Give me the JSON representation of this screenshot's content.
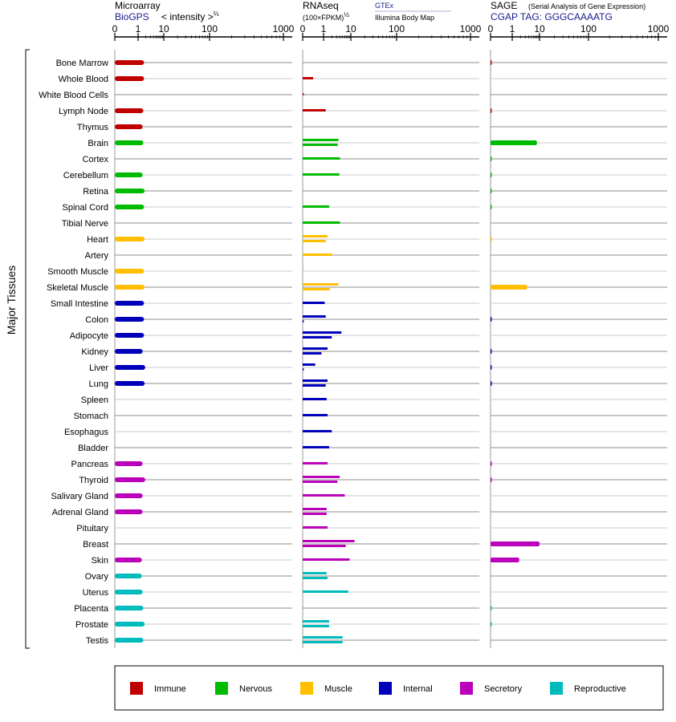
{
  "panels": [
    {
      "id": "microarray",
      "title": "Microarray",
      "source": "BioGPS",
      "scale_text": "< intensity >",
      "scale_sup": "⅔",
      "ticks": [
        "0",
        "1",
        "10",
        "100",
        "1000"
      ]
    },
    {
      "id": "rnaseq",
      "title": "RNAseq",
      "scale_text": "(100×FPKM)",
      "scale_sup": "½",
      "sources": [
        "GTEx",
        "Illumina Body Map"
      ],
      "ticks": [
        "0",
        "1",
        "10",
        "100",
        "1000"
      ]
    },
    {
      "id": "sage",
      "title": "SAGE",
      "subtitle": "(Serial Analysis of Gene Expression)",
      "tag": "CGAP TAG: GGGCAAAATG",
      "ticks": [
        "0",
        "1",
        "10",
        "100",
        "1000"
      ]
    }
  ],
  "side_label": "Major Tissues",
  "categories": {
    "Immune": "#c00000",
    "Nervous": "#00bb00",
    "Muscle": "#ffbf00",
    "Internal": "#0000bb",
    "Secretory": "#bb00bb",
    "Reproductive": "#00bbbb"
  },
  "legend": [
    "Immune",
    "Nervous",
    "Muscle",
    "Internal",
    "Secretory",
    "Reproductive"
  ],
  "chart_data": {
    "type": "bar",
    "orientation": "horizontal",
    "x_scale": "nonlinear (0, 1, 10, 100, 1000)",
    "xlim": [
      0,
      1000
    ],
    "series": [
      "Microarray",
      "RNAseq GTEx",
      "RNAseq Illumina Body Map",
      "SAGE"
    ],
    "tissues": [
      {
        "name": "Bone Marrow",
        "category": "Immune",
        "microarray": 1.7,
        "gtex": null,
        "ibm": null,
        "sage": 0.05
      },
      {
        "name": "Whole Blood",
        "category": "Immune",
        "microarray": 1.7,
        "gtex": 0.5,
        "ibm": null,
        "sage": null
      },
      {
        "name": "White Blood Cells",
        "category": "Immune",
        "microarray": null,
        "gtex": 0.05,
        "ibm": null,
        "sage": null
      },
      {
        "name": "Lymph Node",
        "category": "Immune",
        "microarray": 1.6,
        "gtex": 1.2,
        "ibm": null,
        "sage": 0.05
      },
      {
        "name": "Thymus",
        "category": "Immune",
        "microarray": 1.5,
        "gtex": null,
        "ibm": null,
        "sage": null
      },
      {
        "name": "Brain",
        "category": "Nervous",
        "microarray": 1.6,
        "gtex": 3.5,
        "ibm": 3.3,
        "sage": 8.0
      },
      {
        "name": "Cortex",
        "category": "Nervous",
        "microarray": null,
        "gtex": 4.0,
        "ibm": null,
        "sage": 0.02
      },
      {
        "name": "Cerebellum",
        "category": "Nervous",
        "microarray": 1.5,
        "gtex": 3.8,
        "ibm": null,
        "sage": 0.02
      },
      {
        "name": "Retina",
        "category": "Nervous",
        "microarray": 1.8,
        "gtex": null,
        "ibm": null,
        "sage": 0.02
      },
      {
        "name": "Spinal Cord",
        "category": "Nervous",
        "microarray": 1.7,
        "gtex": 1.6,
        "ibm": null,
        "sage": 0.02
      },
      {
        "name": "Tibial Nerve",
        "category": "Nervous",
        "microarray": null,
        "gtex": 4.0,
        "ibm": null,
        "sage": null
      },
      {
        "name": "Heart",
        "category": "Muscle",
        "microarray": 1.8,
        "gtex": 1.4,
        "ibm": 1.2,
        "sage": 0.02
      },
      {
        "name": "Artery",
        "category": "Muscle",
        "microarray": null,
        "gtex": 2.0,
        "ibm": null,
        "sage": null
      },
      {
        "name": "Smooth Muscle",
        "category": "Muscle",
        "microarray": 1.7,
        "gtex": null,
        "ibm": null,
        "sage": null
      },
      {
        "name": "Skeletal Muscle",
        "category": "Muscle",
        "microarray": 1.8,
        "gtex": 3.5,
        "ibm": 1.7,
        "sage": 3.5
      },
      {
        "name": "Small Intestine",
        "category": "Internal",
        "microarray": 1.7,
        "gtex": 1.1,
        "ibm": null,
        "sage": null
      },
      {
        "name": "Colon",
        "category": "Internal",
        "microarray": 1.7,
        "gtex": 1.2,
        "ibm": 0.05,
        "sage": 0.05
      },
      {
        "name": "Adipocyte",
        "category": "Internal",
        "microarray": 1.7,
        "gtex": 4.5,
        "ibm": 2.0,
        "sage": null
      },
      {
        "name": "Kidney",
        "category": "Internal",
        "microarray": 1.5,
        "gtex": 1.4,
        "ibm": 0.9,
        "sage": 0.05
      },
      {
        "name": "Liver",
        "category": "Internal",
        "microarray": 1.9,
        "gtex": 0.6,
        "ibm": 0.05,
        "sage": 0.05
      },
      {
        "name": "Lung",
        "category": "Internal",
        "microarray": 1.8,
        "gtex": 1.4,
        "ibm": 1.2,
        "sage": 0.05
      },
      {
        "name": "Spleen",
        "category": "Internal",
        "microarray": null,
        "gtex": 1.3,
        "ibm": null,
        "sage": null
      },
      {
        "name": "Stomach",
        "category": "Internal",
        "microarray": null,
        "gtex": 1.4,
        "ibm": null,
        "sage": null
      },
      {
        "name": "Esophagus",
        "category": "Internal",
        "microarray": null,
        "gtex": 2.0,
        "ibm": null,
        "sage": null
      },
      {
        "name": "Bladder",
        "category": "Internal",
        "microarray": null,
        "gtex": 1.6,
        "ibm": null,
        "sage": null
      },
      {
        "name": "Pancreas",
        "category": "Secretory",
        "microarray": 1.5,
        "gtex": 1.4,
        "ibm": null,
        "sage": 0.05
      },
      {
        "name": "Thyroid",
        "category": "Secretory",
        "microarray": 1.9,
        "gtex": 3.9,
        "ibm": 3.2,
        "sage": 0.05
      },
      {
        "name": "Salivary Gland",
        "category": "Secretory",
        "microarray": 1.5,
        "gtex": 6.0,
        "ibm": null,
        "sage": null
      },
      {
        "name": "Adrenal Gland",
        "category": "Secretory",
        "microarray": 1.5,
        "gtex": 1.3,
        "ibm": 1.3,
        "sage": null
      },
      {
        "name": "Pituitary",
        "category": "Secretory",
        "microarray": null,
        "gtex": 1.4,
        "ibm": null,
        "sage": null
      },
      {
        "name": "Breast",
        "category": "Secretory",
        "microarray": null,
        "gtex": 12.0,
        "ibm": 6.5,
        "sage": 10.0
      },
      {
        "name": "Skin",
        "category": "Secretory",
        "microarray": 1.4,
        "gtex": 9.0,
        "ibm": null,
        "sage": 1.8
      },
      {
        "name": "Ovary",
        "category": "Reproductive",
        "microarray": 1.4,
        "gtex": 1.3,
        "ibm": 1.4,
        "sage": null
      },
      {
        "name": "Uterus",
        "category": "Reproductive",
        "microarray": 1.5,
        "gtex": 8.0,
        "ibm": null,
        "sage": null
      },
      {
        "name": "Placenta",
        "category": "Reproductive",
        "microarray": 1.6,
        "gtex": null,
        "ibm": null,
        "sage": 0.02
      },
      {
        "name": "Prostate",
        "category": "Reproductive",
        "microarray": 1.8,
        "gtex": 1.6,
        "ibm": 1.6,
        "sage": 0.02
      },
      {
        "name": "Testis",
        "category": "Reproductive",
        "microarray": 1.6,
        "gtex": 5.0,
        "ibm": 5.0,
        "sage": null
      }
    ]
  }
}
